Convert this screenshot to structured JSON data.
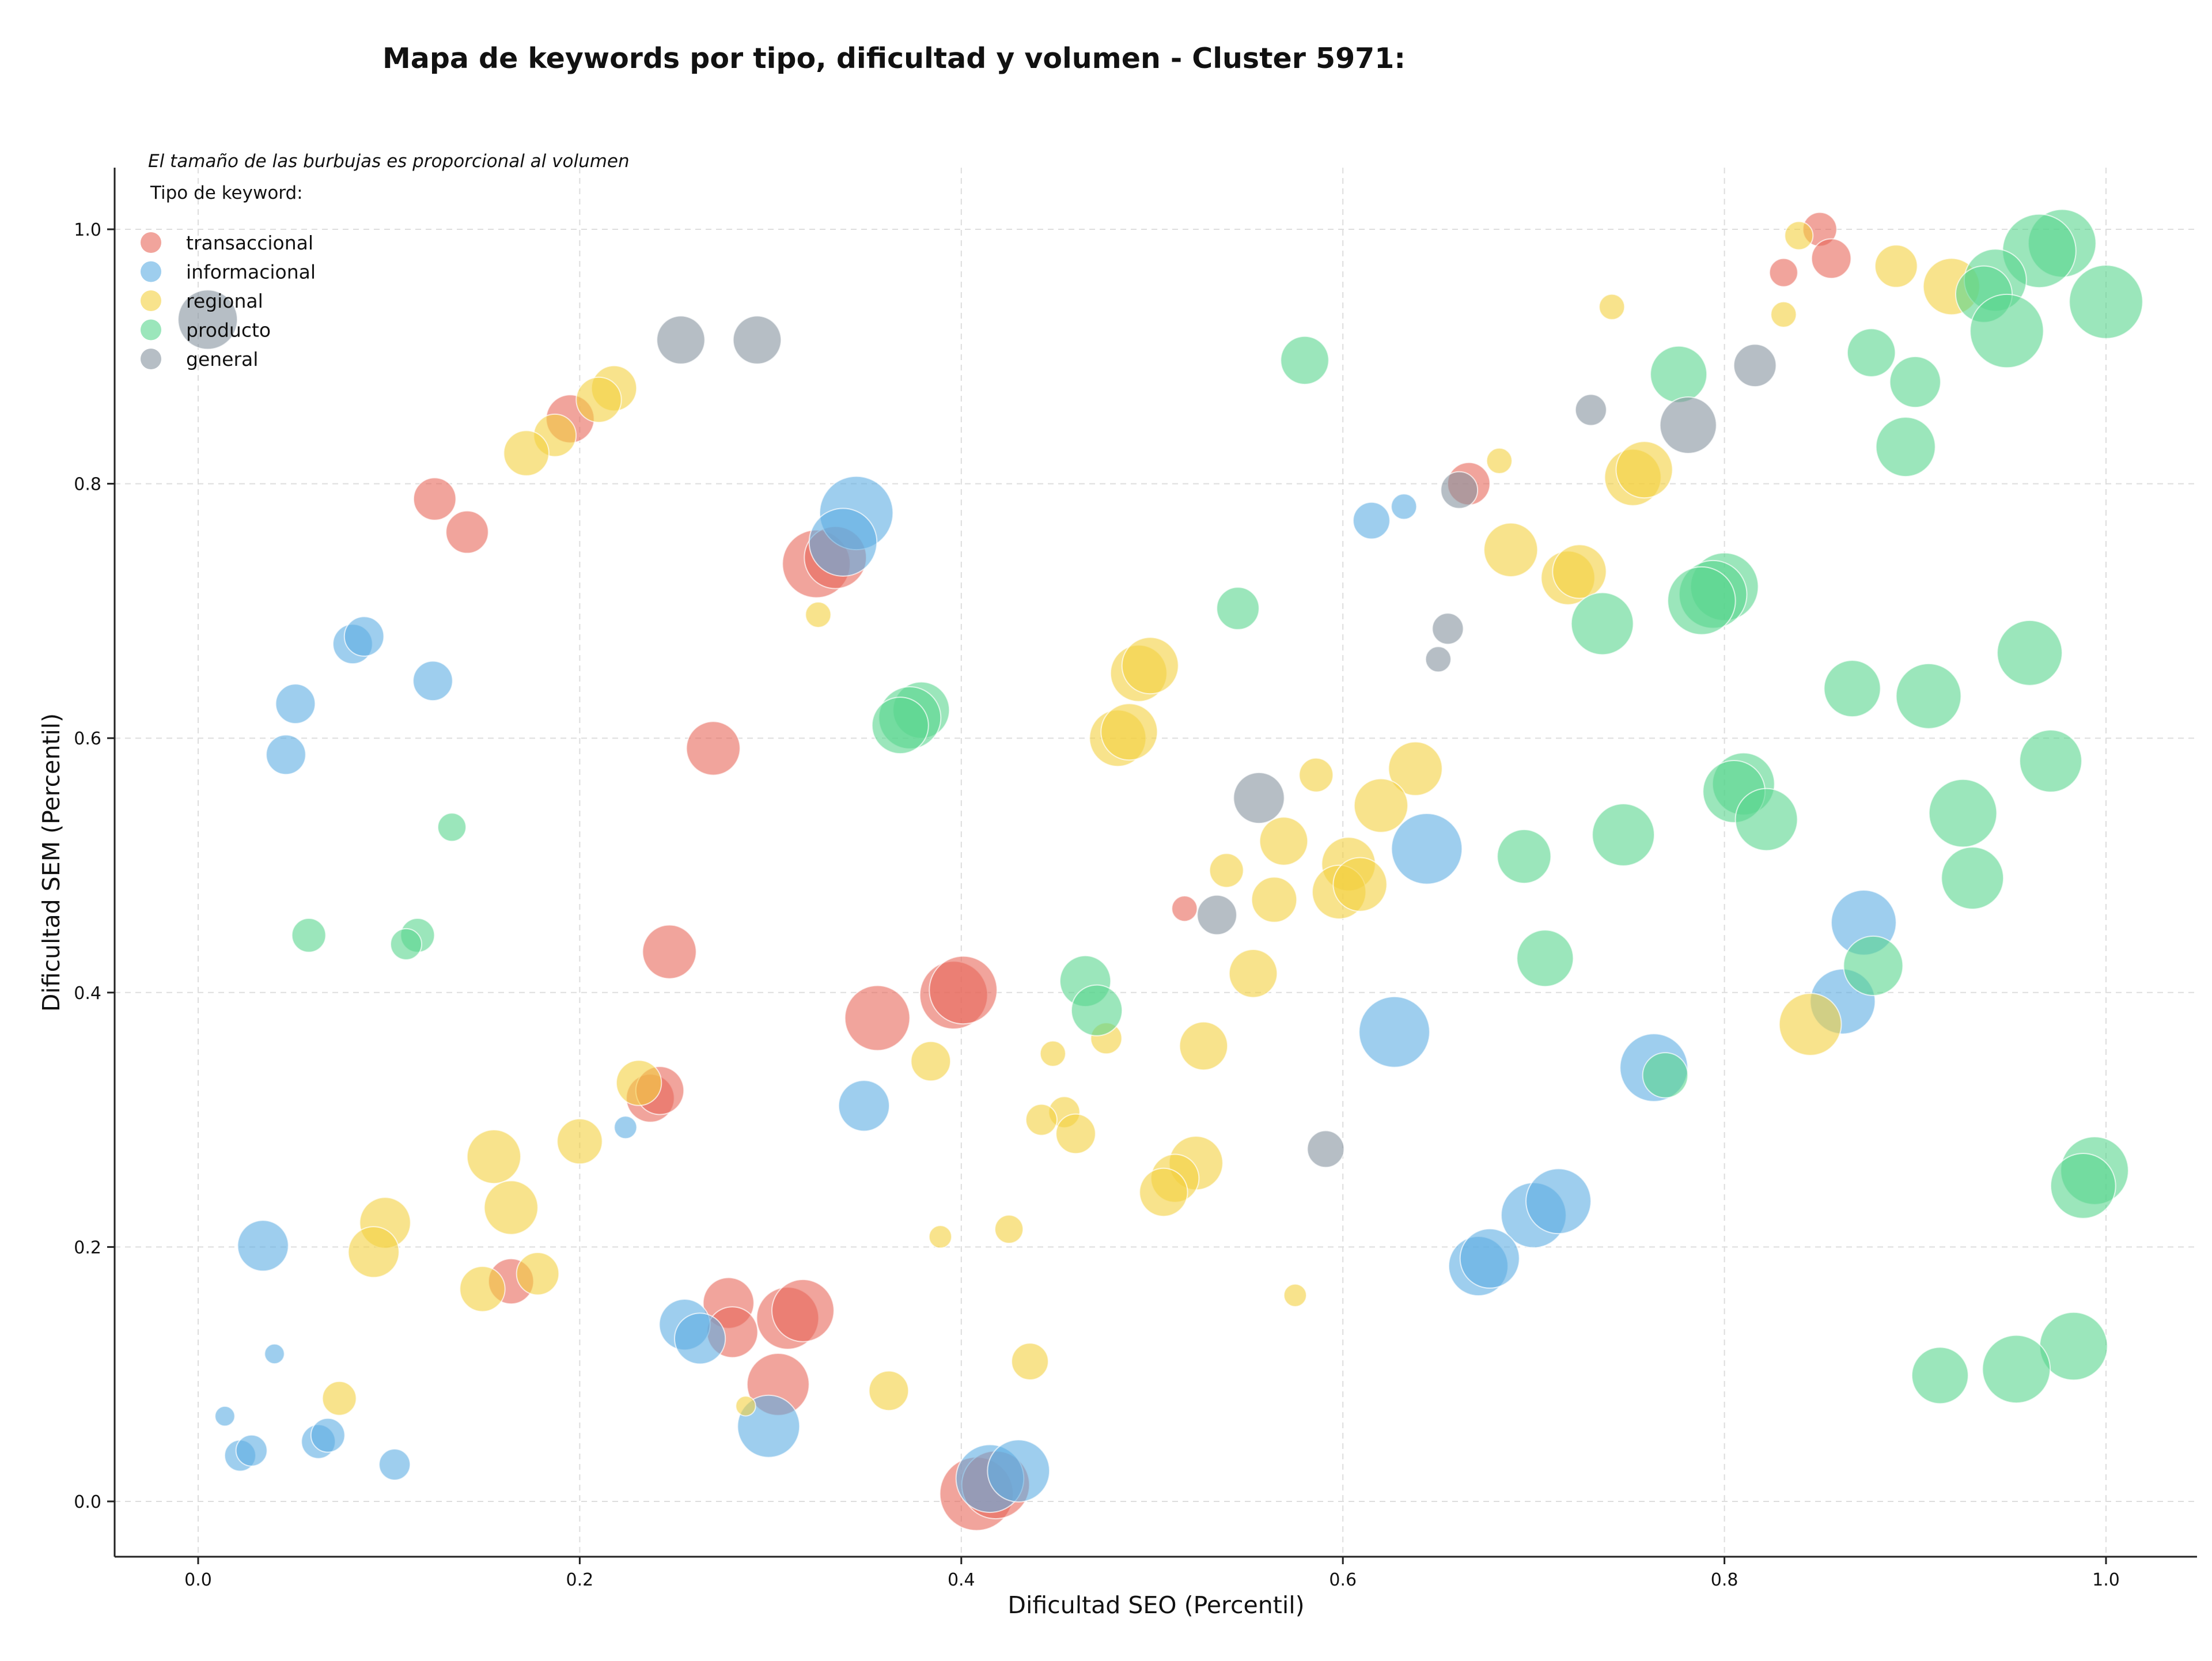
{
  "chart_data": {
    "type": "scatter",
    "title": "Mapa de keywords por tipo, dificultad y volumen - Cluster 5971:",
    "xlabel": "Dificultad SEO (Percentil)",
    "ylabel": "Dificultad SEM (Percentil)",
    "xlim": [
      -0.043,
      1.048
    ],
    "ylim": [
      -0.043,
      1.05
    ],
    "xticks": [
      "0.0",
      "0.2",
      "0.4",
      "0.6",
      "0.8",
      "1.0"
    ],
    "yticks": [
      "0.0",
      "0.2",
      "0.4",
      "0.6",
      "0.8",
      "1.0"
    ],
    "grid": true,
    "annotation": "El tamaño de las burbujas es proporcional al volumen",
    "legend": {
      "title": "Tipo de keyword:",
      "position": "top-left"
    },
    "series": [
      {
        "name": "transaccional",
        "color": "#e8685a",
        "points": [
          {
            "x": 0.85,
            "y": 1.0,
            "r": 12
          },
          {
            "x": 0.856,
            "y": 0.977,
            "r": 14
          },
          {
            "x": 0.831,
            "y": 0.966,
            "r": 10
          },
          {
            "x": 0.195,
            "y": 0.851,
            "r": 17
          },
          {
            "x": 0.124,
            "y": 0.788,
            "r": 15
          },
          {
            "x": 0.141,
            "y": 0.762,
            "r": 15
          },
          {
            "x": 0.666,
            "y": 0.8,
            "r": 15
          },
          {
            "x": 0.324,
            "y": 0.737,
            "r": 24
          },
          {
            "x": 0.334,
            "y": 0.742,
            "r": 22
          },
          {
            "x": 0.27,
            "y": 0.592,
            "r": 19
          },
          {
            "x": 0.517,
            "y": 0.466,
            "r": 9
          },
          {
            "x": 0.247,
            "y": 0.432,
            "r": 19
          },
          {
            "x": 0.356,
            "y": 0.38,
            "r": 23
          },
          {
            "x": 0.396,
            "y": 0.398,
            "r": 24
          },
          {
            "x": 0.401,
            "y": 0.402,
            "r": 24
          },
          {
            "x": 0.237,
            "y": 0.317,
            "r": 17
          },
          {
            "x": 0.242,
            "y": 0.323,
            "r": 17
          },
          {
            "x": 0.164,
            "y": 0.173,
            "r": 16
          },
          {
            "x": 0.278,
            "y": 0.156,
            "r": 18
          },
          {
            "x": 0.28,
            "y": 0.133,
            "r": 18
          },
          {
            "x": 0.309,
            "y": 0.144,
            "r": 22
          },
          {
            "x": 0.317,
            "y": 0.15,
            "r": 22
          },
          {
            "x": 0.304,
            "y": 0.092,
            "r": 22
          },
          {
            "x": 0.408,
            "y": 0.006,
            "r": 26
          },
          {
            "x": 0.418,
            "y": 0.013,
            "r": 24
          }
        ]
      },
      {
        "name": "informacional",
        "color": "#5dade2",
        "points": [
          {
            "x": 0.345,
            "y": 0.777,
            "r": 26
          },
          {
            "x": 0.338,
            "y": 0.754,
            "r": 24
          },
          {
            "x": 0.615,
            "y": 0.771,
            "r": 13
          },
          {
            "x": 0.632,
            "y": 0.782,
            "r": 9
          },
          {
            "x": 0.081,
            "y": 0.674,
            "r": 14
          },
          {
            "x": 0.087,
            "y": 0.68,
            "r": 14
          },
          {
            "x": 0.123,
            "y": 0.645,
            "r": 14
          },
          {
            "x": 0.051,
            "y": 0.627,
            "r": 14
          },
          {
            "x": 0.046,
            "y": 0.587,
            "r": 14
          },
          {
            "x": 0.644,
            "y": 0.513,
            "r": 25
          },
          {
            "x": 0.873,
            "y": 0.455,
            "r": 23
          },
          {
            "x": 0.862,
            "y": 0.393,
            "r": 23
          },
          {
            "x": 0.627,
            "y": 0.369,
            "r": 25
          },
          {
            "x": 0.763,
            "y": 0.341,
            "r": 24
          },
          {
            "x": 0.349,
            "y": 0.311,
            "r": 18
          },
          {
            "x": 0.224,
            "y": 0.294,
            "r": 8
          },
          {
            "x": 0.034,
            "y": 0.201,
            "r": 18
          },
          {
            "x": 0.7,
            "y": 0.225,
            "r": 23
          },
          {
            "x": 0.713,
            "y": 0.236,
            "r": 23
          },
          {
            "x": 0.671,
            "y": 0.185,
            "r": 21
          },
          {
            "x": 0.677,
            "y": 0.191,
            "r": 21
          },
          {
            "x": 0.255,
            "y": 0.139,
            "r": 18
          },
          {
            "x": 0.263,
            "y": 0.128,
            "r": 18
          },
          {
            "x": 0.04,
            "y": 0.116,
            "r": 7
          },
          {
            "x": 0.014,
            "y": 0.067,
            "r": 7
          },
          {
            "x": 0.022,
            "y": 0.036,
            "r": 11
          },
          {
            "x": 0.028,
            "y": 0.04,
            "r": 11
          },
          {
            "x": 0.063,
            "y": 0.047,
            "r": 12
          },
          {
            "x": 0.068,
            "y": 0.052,
            "r": 12
          },
          {
            "x": 0.103,
            "y": 0.029,
            "r": 11
          },
          {
            "x": 0.299,
            "y": 0.059,
            "r": 22
          },
          {
            "x": 0.415,
            "y": 0.018,
            "r": 24
          },
          {
            "x": 0.43,
            "y": 0.024,
            "r": 22
          }
        ]
      },
      {
        "name": "regional",
        "color": "#f4d03f",
        "points": [
          {
            "x": 0.839,
            "y": 0.995,
            "r": 10
          },
          {
            "x": 0.89,
            "y": 0.971,
            "r": 15
          },
          {
            "x": 0.919,
            "y": 0.955,
            "r": 20
          },
          {
            "x": 0.741,
            "y": 0.939,
            "r": 9
          },
          {
            "x": 0.831,
            "y": 0.933,
            "r": 9
          },
          {
            "x": 0.218,
            "y": 0.875,
            "r": 16
          },
          {
            "x": 0.21,
            "y": 0.866,
            "r": 16
          },
          {
            "x": 0.187,
            "y": 0.838,
            "r": 15
          },
          {
            "x": 0.172,
            "y": 0.824,
            "r": 16
          },
          {
            "x": 0.682,
            "y": 0.818,
            "r": 9
          },
          {
            "x": 0.752,
            "y": 0.805,
            "r": 20
          },
          {
            "x": 0.758,
            "y": 0.811,
            "r": 20
          },
          {
            "x": 0.688,
            "y": 0.748,
            "r": 19
          },
          {
            "x": 0.718,
            "y": 0.726,
            "r": 19
          },
          {
            "x": 0.724,
            "y": 0.731,
            "r": 19
          },
          {
            "x": 0.325,
            "y": 0.697,
            "r": 9
          },
          {
            "x": 0.493,
            "y": 0.651,
            "r": 20
          },
          {
            "x": 0.499,
            "y": 0.657,
            "r": 20
          },
          {
            "x": 0.482,
            "y": 0.6,
            "r": 20
          },
          {
            "x": 0.488,
            "y": 0.605,
            "r": 20
          },
          {
            "x": 0.586,
            "y": 0.571,
            "r": 12
          },
          {
            "x": 0.638,
            "y": 0.576,
            "r": 19
          },
          {
            "x": 0.62,
            "y": 0.547,
            "r": 19
          },
          {
            "x": 0.569,
            "y": 0.519,
            "r": 17
          },
          {
            "x": 0.539,
            "y": 0.496,
            "r": 12
          },
          {
            "x": 0.603,
            "y": 0.501,
            "r": 19
          },
          {
            "x": 0.598,
            "y": 0.479,
            "r": 19
          },
          {
            "x": 0.609,
            "y": 0.485,
            "r": 19
          },
          {
            "x": 0.564,
            "y": 0.473,
            "r": 16
          },
          {
            "x": 0.553,
            "y": 0.415,
            "r": 17
          },
          {
            "x": 0.845,
            "y": 0.375,
            "r": 22
          },
          {
            "x": 0.527,
            "y": 0.358,
            "r": 17
          },
          {
            "x": 0.476,
            "y": 0.364,
            "r": 11
          },
          {
            "x": 0.384,
            "y": 0.346,
            "r": 14
          },
          {
            "x": 0.448,
            "y": 0.352,
            "r": 9
          },
          {
            "x": 0.231,
            "y": 0.329,
            "r": 16
          },
          {
            "x": 0.155,
            "y": 0.271,
            "r": 19
          },
          {
            "x": 0.2,
            "y": 0.283,
            "r": 16
          },
          {
            "x": 0.454,
            "y": 0.306,
            "r": 11
          },
          {
            "x": 0.442,
            "y": 0.3,
            "r": 11
          },
          {
            "x": 0.46,
            "y": 0.289,
            "r": 14
          },
          {
            "x": 0.523,
            "y": 0.266,
            "r": 19
          },
          {
            "x": 0.512,
            "y": 0.254,
            "r": 17
          },
          {
            "x": 0.506,
            "y": 0.243,
            "r": 17
          },
          {
            "x": 0.164,
            "y": 0.231,
            "r": 19
          },
          {
            "x": 0.098,
            "y": 0.219,
            "r": 18
          },
          {
            "x": 0.092,
            "y": 0.196,
            "r": 18
          },
          {
            "x": 0.178,
            "y": 0.179,
            "r": 15
          },
          {
            "x": 0.149,
            "y": 0.167,
            "r": 16
          },
          {
            "x": 0.389,
            "y": 0.208,
            "r": 8
          },
          {
            "x": 0.425,
            "y": 0.214,
            "r": 10
          },
          {
            "x": 0.575,
            "y": 0.162,
            "r": 8
          },
          {
            "x": 0.074,
            "y": 0.081,
            "r": 12
          },
          {
            "x": 0.436,
            "y": 0.11,
            "r": 13
          },
          {
            "x": 0.362,
            "y": 0.087,
            "r": 14
          },
          {
            "x": 0.287,
            "y": 0.075,
            "r": 7
          }
        ]
      },
      {
        "name": "producto",
        "color": "#58d68d",
        "points": [
          {
            "x": 0.977,
            "y": 0.989,
            "r": 24
          },
          {
            "x": 0.965,
            "y": 0.983,
            "r": 26
          },
          {
            "x": 0.942,
            "y": 0.96,
            "r": 22
          },
          {
            "x": 0.936,
            "y": 0.949,
            "r": 20
          },
          {
            "x": 1.0,
            "y": 0.943,
            "r": 26
          },
          {
            "x": 0.948,
            "y": 0.92,
            "r": 26
          },
          {
            "x": 0.58,
            "y": 0.897,
            "r": 17
          },
          {
            "x": 0.877,
            "y": 0.903,
            "r": 17
          },
          {
            "x": 0.9,
            "y": 0.88,
            "r": 18
          },
          {
            "x": 0.776,
            "y": 0.886,
            "r": 20
          },
          {
            "x": 0.895,
            "y": 0.829,
            "r": 21
          },
          {
            "x": 0.545,
            "y": 0.702,
            "r": 15
          },
          {
            "x": 0.8,
            "y": 0.719,
            "r": 24
          },
          {
            "x": 0.794,
            "y": 0.713,
            "r": 24
          },
          {
            "x": 0.788,
            "y": 0.708,
            "r": 24
          },
          {
            "x": 0.736,
            "y": 0.69,
            "r": 22
          },
          {
            "x": 0.96,
            "y": 0.667,
            "r": 23
          },
          {
            "x": 0.867,
            "y": 0.639,
            "r": 20
          },
          {
            "x": 0.907,
            "y": 0.633,
            "r": 23
          },
          {
            "x": 0.379,
            "y": 0.622,
            "r": 20
          },
          {
            "x": 0.373,
            "y": 0.616,
            "r": 22
          },
          {
            "x": 0.368,
            "y": 0.61,
            "r": 20
          },
          {
            "x": 0.971,
            "y": 0.582,
            "r": 22
          },
          {
            "x": 0.81,
            "y": 0.564,
            "r": 22
          },
          {
            "x": 0.805,
            "y": 0.558,
            "r": 22
          },
          {
            "x": 0.822,
            "y": 0.536,
            "r": 22
          },
          {
            "x": 0.925,
            "y": 0.541,
            "r": 24
          },
          {
            "x": 0.747,
            "y": 0.524,
            "r": 22
          },
          {
            "x": 0.133,
            "y": 0.53,
            "r": 10
          },
          {
            "x": 0.695,
            "y": 0.507,
            "r": 19
          },
          {
            "x": 0.93,
            "y": 0.49,
            "r": 22
          },
          {
            "x": 0.058,
            "y": 0.445,
            "r": 12
          },
          {
            "x": 0.115,
            "y": 0.445,
            "r": 12
          },
          {
            "x": 0.109,
            "y": 0.438,
            "r": 11
          },
          {
            "x": 0.706,
            "y": 0.427,
            "r": 20
          },
          {
            "x": 0.878,
            "y": 0.421,
            "r": 21
          },
          {
            "x": 0.465,
            "y": 0.409,
            "r": 18
          },
          {
            "x": 0.471,
            "y": 0.386,
            "r": 18
          },
          {
            "x": 0.769,
            "y": 0.335,
            "r": 16
          },
          {
            "x": 0.994,
            "y": 0.26,
            "r": 24
          },
          {
            "x": 0.988,
            "y": 0.248,
            "r": 23
          },
          {
            "x": 0.983,
            "y": 0.122,
            "r": 24
          },
          {
            "x": 0.913,
            "y": 0.099,
            "r": 20
          },
          {
            "x": 0.953,
            "y": 0.104,
            "r": 24
          }
        ]
      },
      {
        "name": "general",
        "color": "#85929e",
        "points": [
          {
            "x": 0.005,
            "y": 0.929,
            "r": 21
          },
          {
            "x": 0.253,
            "y": 0.913,
            "r": 17
          },
          {
            "x": 0.293,
            "y": 0.913,
            "r": 17
          },
          {
            "x": 0.816,
            "y": 0.893,
            "r": 15
          },
          {
            "x": 0.73,
            "y": 0.858,
            "r": 11
          },
          {
            "x": 0.781,
            "y": 0.846,
            "r": 20
          },
          {
            "x": 0.661,
            "y": 0.795,
            "r": 13
          },
          {
            "x": 0.655,
            "y": 0.686,
            "r": 11
          },
          {
            "x": 0.65,
            "y": 0.662,
            "r": 9
          },
          {
            "x": 0.556,
            "y": 0.553,
            "r": 18
          },
          {
            "x": 0.534,
            "y": 0.461,
            "r": 14
          },
          {
            "x": 0.591,
            "y": 0.277,
            "r": 13
          }
        ]
      }
    ]
  }
}
